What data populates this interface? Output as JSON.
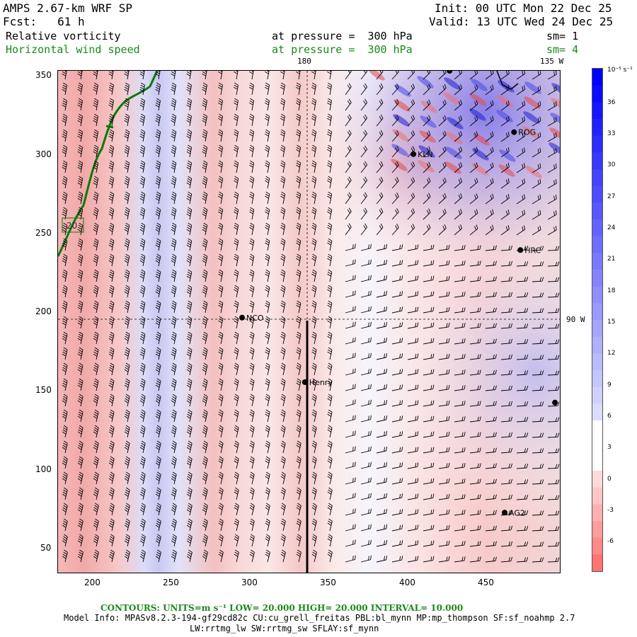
{
  "header": {
    "model": "AMPS 2.67-km WRF SP",
    "forecast": "Fcst:   61 h",
    "init": "Init: 00 UTC Mon 22 Dec 25",
    "valid": "Valid: 13 UTC Wed 24 Dec 25",
    "field1_name": "Relative vorticity",
    "field1_level": "at pressure =  300 hPa",
    "field1_sm": "sm= 1",
    "field2_name": "Horizontal wind speed",
    "field2_level": "at pressure =  300 hPa",
    "field2_sm": "sm= 4"
  },
  "map_labels": {
    "lon_180": "180",
    "lon_135w": "135 W",
    "lon_90w": "90 W",
    "box_label": "20"
  },
  "stations": [
    {
      "name": "ROG",
      "x": 466,
      "y": 314
    },
    {
      "name": "KLN",
      "x": 402,
      "y": 300
    },
    {
      "name": "HRC",
      "x": 470,
      "y": 239
    },
    {
      "name": "NCO",
      "x": 293,
      "y": 196
    },
    {
      "name": "Henry",
      "x": 333,
      "y": 155
    },
    {
      "name": "AG2",
      "x": 460,
      "y": 72
    },
    {
      "name": "",
      "x": 425,
      "y": 353
    },
    {
      "name": "",
      "x": 492,
      "y": 142
    }
  ],
  "axes": {
    "x_ticks": [
      "200",
      "250",
      "300",
      "350",
      "400",
      "450"
    ],
    "y_ticks": [
      "350",
      "300",
      "250",
      "200",
      "150",
      "100",
      "50"
    ],
    "x_range": [
      176,
      496
    ],
    "y_range": [
      33,
      353
    ]
  },
  "colorbar": {
    "unit": "10⁻⁵ s⁻¹",
    "ticks": [
      "36",
      "33",
      "30",
      "27",
      "24",
      "21",
      "18",
      "15",
      "12",
      "9",
      "6",
      "3",
      "0",
      "-3",
      "-6"
    ]
  },
  "footer": {
    "contours": "CONTOURS:  UNITS=m s⁻¹  LOW=  20.000      HIGH=  20.000      INTERVAL=   10.000",
    "model_info": "Model Info: MPASv8.2.3-194-gf29cd82c CU:cu_grell_freitas PBL:bl_mynn MP:mp_thompson SF:sf_noahmp 2.7",
    "model_info2": "LW:rrtmg_lw SW:rrtmg_sw SFLAY:sf_mynn"
  },
  "colors": {
    "positive": "#e03030",
    "negative": "#1010e0",
    "coast": "#0a7a0a",
    "footer_green": "#1a8a1a"
  }
}
